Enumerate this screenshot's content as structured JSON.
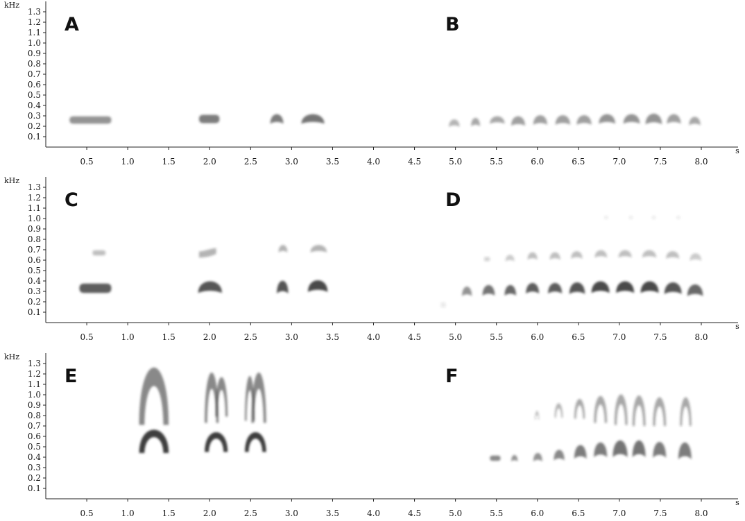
{
  "chart_data": {
    "type": "spectrogram",
    "x_axis": {
      "unit": "s",
      "range": [
        0,
        8.5
      ],
      "ticks": [
        0.5,
        1.0,
        1.5,
        2.0,
        2.5,
        3.0,
        3.5,
        4.0,
        4.5,
        5.0,
        5.5,
        6.0,
        6.5,
        7.0,
        7.5,
        8.0
      ],
      "tick_labels": [
        "0.5",
        "1.0",
        "1.5",
        "2.0",
        "2.5",
        "3.0",
        "3.5",
        "4.0",
        "4.5",
        "5.0",
        "5.5",
        "6.0",
        "6.5",
        "7.0",
        "7.5",
        "8.0"
      ]
    },
    "y_axis": {
      "unit": "kHz",
      "range": [
        0,
        1.4
      ],
      "ticks": [
        0.1,
        0.2,
        0.3,
        0.4,
        0.5,
        0.6,
        0.7,
        0.8,
        0.9,
        1.0,
        1.1,
        1.2,
        1.3
      ],
      "tick_labels": [
        "0.1",
        "0.2",
        "0.3",
        "0.4",
        "0.5",
        "0.6",
        "0.7",
        "0.8",
        "0.9",
        "1.0",
        "1.1",
        "1.2",
        "1.3"
      ]
    },
    "ink_color": "#2a2a2a",
    "rows": [
      {
        "panels": [
          {
            "letter": "A",
            "notes": [
              {
                "t0": 0.29,
                "t1": 0.8,
                "f_center": 0.26,
                "f_span": 0.07,
                "darkness": 0.5,
                "shape": "flat"
              },
              {
                "t0": 1.87,
                "t1": 2.12,
                "f_center": 0.27,
                "f_span": 0.08,
                "darkness": 0.6,
                "shape": "flat"
              },
              {
                "t0": 2.74,
                "t1": 2.9,
                "f_center": 0.27,
                "f_span": 0.09,
                "darkness": 0.6,
                "shape": "arch"
              },
              {
                "t0": 3.12,
                "t1": 3.4,
                "f_center": 0.27,
                "f_span": 0.09,
                "darkness": 0.65,
                "shape": "arch"
              }
            ]
          },
          {
            "letter": "B",
            "notes": [
              {
                "t0": 4.92,
                "t1": 5.05,
                "f_center": 0.23,
                "f_span": 0.07,
                "darkness": 0.35,
                "shape": "arch"
              },
              {
                "t0": 5.19,
                "t1": 5.3,
                "f_center": 0.24,
                "f_span": 0.08,
                "darkness": 0.4,
                "shape": "arch"
              },
              {
                "t0": 5.42,
                "t1": 5.6,
                "f_center": 0.26,
                "f_span": 0.07,
                "darkness": 0.4,
                "shape": "arch"
              },
              {
                "t0": 5.68,
                "t1": 5.85,
                "f_center": 0.25,
                "f_span": 0.09,
                "darkness": 0.45,
                "shape": "arch"
              },
              {
                "t0": 5.95,
                "t1": 6.12,
                "f_center": 0.26,
                "f_span": 0.09,
                "darkness": 0.45,
                "shape": "arch"
              },
              {
                "t0": 6.22,
                "t1": 6.4,
                "f_center": 0.26,
                "f_span": 0.09,
                "darkness": 0.45,
                "shape": "arch"
              },
              {
                "t0": 6.48,
                "t1": 6.66,
                "f_center": 0.26,
                "f_span": 0.09,
                "darkness": 0.45,
                "shape": "arch"
              },
              {
                "t0": 6.75,
                "t1": 6.95,
                "f_center": 0.27,
                "f_span": 0.09,
                "darkness": 0.5,
                "shape": "arch"
              },
              {
                "t0": 7.05,
                "t1": 7.25,
                "f_center": 0.27,
                "f_span": 0.09,
                "darkness": 0.5,
                "shape": "arch"
              },
              {
                "t0": 7.32,
                "t1": 7.52,
                "f_center": 0.27,
                "f_span": 0.1,
                "darkness": 0.5,
                "shape": "arch"
              },
              {
                "t0": 7.58,
                "t1": 7.75,
                "f_center": 0.27,
                "f_span": 0.09,
                "darkness": 0.45,
                "shape": "arch"
              },
              {
                "t0": 7.85,
                "t1": 7.99,
                "f_center": 0.25,
                "f_span": 0.08,
                "darkness": 0.4,
                "shape": "arch"
              }
            ]
          }
        ]
      },
      {
        "panels": [
          {
            "letter": "C",
            "notes": [
              {
                "t0": 0.41,
                "t1": 0.8,
                "f_center": 0.33,
                "f_span": 0.09,
                "darkness": 0.75,
                "shape": "flat"
              },
              {
                "t0": 0.57,
                "t1": 0.73,
                "f_center": 0.67,
                "f_span": 0.05,
                "darkness": 0.3,
                "shape": "flat"
              },
              {
                "t0": 1.86,
                "t1": 2.15,
                "f_center": 0.34,
                "f_span": 0.11,
                "darkness": 0.8,
                "shape": "arch"
              },
              {
                "t0": 1.87,
                "t1": 2.08,
                "f_center": 0.67,
                "f_span": 0.09,
                "darkness": 0.35,
                "shape": "rise"
              },
              {
                "t0": 2.82,
                "t1": 2.96,
                "f_center": 0.34,
                "f_span": 0.12,
                "darkness": 0.8,
                "shape": "arch"
              },
              {
                "t0": 2.84,
                "t1": 2.95,
                "f_center": 0.71,
                "f_span": 0.07,
                "darkness": 0.35,
                "shape": "arch"
              },
              {
                "t0": 3.2,
                "t1": 3.44,
                "f_center": 0.35,
                "f_span": 0.11,
                "darkness": 0.85,
                "shape": "arch"
              },
              {
                "t0": 3.23,
                "t1": 3.43,
                "f_center": 0.71,
                "f_span": 0.07,
                "darkness": 0.35,
                "shape": "arch"
              }
            ]
          },
          {
            "letter": "D",
            "notes": [
              {
                "t0": 4.82,
                "t1": 4.88,
                "f_center": 0.17,
                "f_span": 0.05,
                "darkness": 0.1,
                "shape": "flat"
              },
              {
                "t0": 5.08,
                "t1": 5.2,
                "f_center": 0.3,
                "f_span": 0.09,
                "darkness": 0.5,
                "shape": "arch"
              },
              {
                "t0": 5.33,
                "t1": 5.48,
                "f_center": 0.31,
                "f_span": 0.1,
                "darkness": 0.65,
                "shape": "arch"
              },
              {
                "t0": 5.35,
                "t1": 5.42,
                "f_center": 0.61,
                "f_span": 0.04,
                "darkness": 0.2,
                "shape": "flat"
              },
              {
                "t0": 5.6,
                "t1": 5.74,
                "f_center": 0.31,
                "f_span": 0.1,
                "darkness": 0.7,
                "shape": "arch"
              },
              {
                "t0": 5.61,
                "t1": 5.72,
                "f_center": 0.62,
                "f_span": 0.06,
                "darkness": 0.25,
                "shape": "arch"
              },
              {
                "t0": 5.86,
                "t1": 6.02,
                "f_center": 0.33,
                "f_span": 0.1,
                "darkness": 0.75,
                "shape": "arch"
              },
              {
                "t0": 5.88,
                "t1": 6.0,
                "f_center": 0.64,
                "f_span": 0.07,
                "darkness": 0.3,
                "shape": "arch"
              },
              {
                "t0": 6.13,
                "t1": 6.3,
                "f_center": 0.33,
                "f_span": 0.1,
                "darkness": 0.75,
                "shape": "arch"
              },
              {
                "t0": 6.15,
                "t1": 6.28,
                "f_center": 0.64,
                "f_span": 0.07,
                "darkness": 0.3,
                "shape": "arch"
              },
              {
                "t0": 6.39,
                "t1": 6.58,
                "f_center": 0.33,
                "f_span": 0.11,
                "darkness": 0.8,
                "shape": "arch"
              },
              {
                "t0": 6.41,
                "t1": 6.55,
                "f_center": 0.65,
                "f_span": 0.07,
                "darkness": 0.3,
                "shape": "arch"
              },
              {
                "t0": 6.66,
                "t1": 6.88,
                "f_center": 0.34,
                "f_span": 0.11,
                "darkness": 0.85,
                "shape": "arch"
              },
              {
                "t0": 6.7,
                "t1": 6.85,
                "f_center": 0.66,
                "f_span": 0.07,
                "darkness": 0.3,
                "shape": "arch"
              },
              {
                "t0": 6.96,
                "t1": 7.18,
                "f_center": 0.34,
                "f_span": 0.11,
                "darkness": 0.85,
                "shape": "arch"
              },
              {
                "t0": 6.99,
                "t1": 7.15,
                "f_center": 0.66,
                "f_span": 0.07,
                "darkness": 0.3,
                "shape": "arch"
              },
              {
                "t0": 7.26,
                "t1": 7.48,
                "f_center": 0.34,
                "f_span": 0.11,
                "darkness": 0.85,
                "shape": "arch"
              },
              {
                "t0": 7.28,
                "t1": 7.45,
                "f_center": 0.66,
                "f_span": 0.07,
                "darkness": 0.3,
                "shape": "arch"
              },
              {
                "t0": 7.55,
                "t1": 7.76,
                "f_center": 0.33,
                "f_span": 0.11,
                "darkness": 0.8,
                "shape": "arch"
              },
              {
                "t0": 7.57,
                "t1": 7.73,
                "f_center": 0.65,
                "f_span": 0.07,
                "darkness": 0.3,
                "shape": "arch"
              },
              {
                "t0": 7.83,
                "t1": 8.02,
                "f_center": 0.31,
                "f_span": 0.11,
                "darkness": 0.7,
                "shape": "arch"
              },
              {
                "t0": 7.86,
                "t1": 8.0,
                "f_center": 0.63,
                "f_span": 0.07,
                "darkness": 0.25,
                "shape": "arch"
              },
              {
                "t0": 6.82,
                "t1": 6.86,
                "f_center": 1.01,
                "f_span": 0.03,
                "darkness": 0.1,
                "shape": "flat"
              },
              {
                "t0": 7.12,
                "t1": 7.16,
                "f_center": 1.01,
                "f_span": 0.03,
                "darkness": 0.1,
                "shape": "flat"
              },
              {
                "t0": 7.4,
                "t1": 7.44,
                "f_center": 1.01,
                "f_span": 0.03,
                "darkness": 0.1,
                "shape": "flat"
              },
              {
                "t0": 7.7,
                "t1": 7.74,
                "f_center": 1.01,
                "f_span": 0.03,
                "darkness": 0.1,
                "shape": "flat"
              }
            ]
          }
        ]
      },
      {
        "panels": [
          {
            "letter": "E",
            "notes": [
              {
                "t0": 1.14,
                "t1": 1.5,
                "f_center": 1.03,
                "f_span": 0.64,
                "darkness": 0.55,
                "shape": "dome"
              },
              {
                "t0": 1.14,
                "t1": 1.5,
                "f_center": 0.57,
                "f_span": 0.26,
                "darkness": 0.9,
                "shape": "dome"
              },
              {
                "t0": 1.94,
                "t1": 2.11,
                "f_center": 1.01,
                "f_span": 0.56,
                "darkness": 0.55,
                "shape": "dome"
              },
              {
                "t0": 2.07,
                "t1": 2.22,
                "f_center": 1.01,
                "f_span": 0.44,
                "darkness": 0.55,
                "shape": "dome"
              },
              {
                "t0": 1.94,
                "t1": 2.22,
                "f_center": 0.56,
                "f_span": 0.22,
                "darkness": 0.9,
                "shape": "dome"
              },
              {
                "t0": 2.43,
                "t1": 2.55,
                "f_center": 1.0,
                "f_span": 0.5,
                "darkness": 0.55,
                "shape": "dome"
              },
              {
                "t0": 2.51,
                "t1": 2.69,
                "f_center": 1.01,
                "f_span": 0.56,
                "darkness": 0.55,
                "shape": "dome"
              },
              {
                "t0": 2.43,
                "t1": 2.69,
                "f_center": 0.56,
                "f_span": 0.22,
                "darkness": 0.9,
                "shape": "dome"
              }
            ]
          },
          {
            "letter": "F",
            "notes": [
              {
                "t0": 5.42,
                "t1": 5.55,
                "f_center": 0.39,
                "f_span": 0.05,
                "darkness": 0.55,
                "shape": "flat"
              },
              {
                "t0": 5.68,
                "t1": 5.76,
                "f_center": 0.39,
                "f_span": 0.06,
                "darkness": 0.5,
                "shape": "arch"
              },
              {
                "t0": 5.95,
                "t1": 6.06,
                "f_center": 0.4,
                "f_span": 0.08,
                "darkness": 0.5,
                "shape": "arch"
              },
              {
                "t0": 5.97,
                "t1": 6.02,
                "f_center": 0.81,
                "f_span": 0.1,
                "darkness": 0.3,
                "shape": "dome"
              },
              {
                "t0": 6.2,
                "t1": 6.33,
                "f_center": 0.42,
                "f_span": 0.1,
                "darkness": 0.55,
                "shape": "arch"
              },
              {
                "t0": 6.21,
                "t1": 6.31,
                "f_center": 0.86,
                "f_span": 0.16,
                "darkness": 0.35,
                "shape": "dome"
              },
              {
                "t0": 6.45,
                "t1": 6.6,
                "f_center": 0.45,
                "f_span": 0.13,
                "darkness": 0.6,
                "shape": "arch"
              },
              {
                "t0": 6.45,
                "t1": 6.58,
                "f_center": 0.88,
                "f_span": 0.22,
                "darkness": 0.4,
                "shape": "dome"
              },
              {
                "t0": 6.69,
                "t1": 6.85,
                "f_center": 0.47,
                "f_span": 0.14,
                "darkness": 0.6,
                "shape": "arch"
              },
              {
                "t0": 6.69,
                "t1": 6.85,
                "f_center": 0.88,
                "f_span": 0.3,
                "darkness": 0.4,
                "shape": "dome"
              },
              {
                "t0": 6.92,
                "t1": 7.1,
                "f_center": 0.48,
                "f_span": 0.16,
                "darkness": 0.65,
                "shape": "arch"
              },
              {
                "t0": 6.94,
                "t1": 7.1,
                "f_center": 0.88,
                "f_span": 0.34,
                "darkness": 0.4,
                "shape": "dome"
              },
              {
                "t0": 7.16,
                "t1": 7.32,
                "f_center": 0.48,
                "f_span": 0.16,
                "darkness": 0.65,
                "shape": "arch"
              },
              {
                "t0": 7.16,
                "t1": 7.32,
                "f_center": 0.87,
                "f_span": 0.34,
                "darkness": 0.4,
                "shape": "dome"
              },
              {
                "t0": 7.41,
                "t1": 7.57,
                "f_center": 0.47,
                "f_span": 0.15,
                "darkness": 0.6,
                "shape": "arch"
              },
              {
                "t0": 7.41,
                "t1": 7.57,
                "f_center": 0.86,
                "f_span": 0.32,
                "darkness": 0.4,
                "shape": "dome"
              },
              {
                "t0": 7.72,
                "t1": 7.88,
                "f_center": 0.46,
                "f_span": 0.16,
                "darkness": 0.6,
                "shape": "arch"
              },
              {
                "t0": 7.74,
                "t1": 7.88,
                "f_center": 0.86,
                "f_span": 0.32,
                "darkness": 0.4,
                "shape": "dome"
              }
            ]
          }
        ]
      }
    ]
  }
}
